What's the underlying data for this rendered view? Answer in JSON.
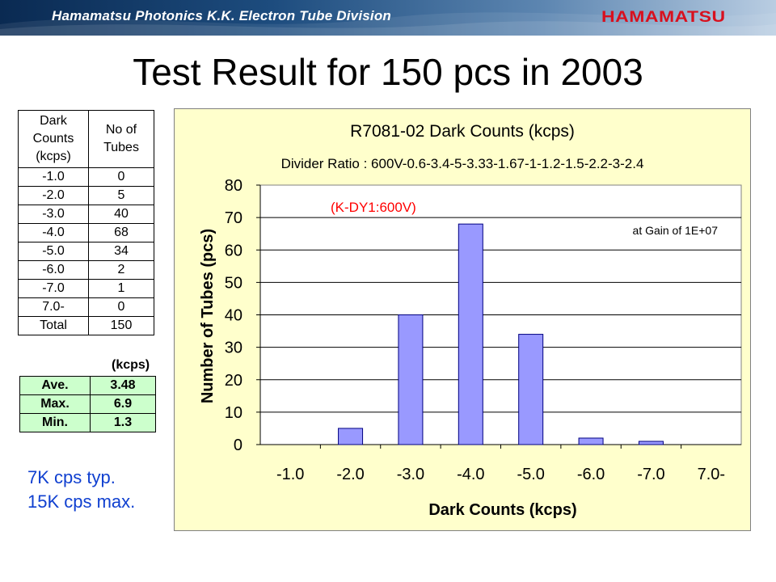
{
  "header": {
    "title": "Hamamatsu Photonics K.K.  Electron Tube Division",
    "logo": "HAMAMATSU"
  },
  "page_title": "Test Result for 150 pcs in 2003",
  "count_table": {
    "headers": [
      "Dark Counts (kcps)",
      "No of Tubes"
    ],
    "rows": [
      [
        "-1.0",
        "0"
      ],
      [
        "-2.0",
        "5"
      ],
      [
        "-3.0",
        "40"
      ],
      [
        "-4.0",
        "68"
      ],
      [
        "-5.0",
        "34"
      ],
      [
        "-6.0",
        "2"
      ],
      [
        "-7.0",
        "1"
      ],
      [
        "7.0-",
        "0"
      ],
      [
        "Total",
        "150"
      ]
    ]
  },
  "stats": {
    "unit": "(kcps)",
    "rows": [
      [
        "Ave.",
        "3.48"
      ],
      [
        "Max.",
        "6.9"
      ],
      [
        "Min.",
        "1.3"
      ]
    ]
  },
  "notes": [
    "7K cps typ.",
    "15K cps max."
  ],
  "chart_data": {
    "type": "bar",
    "title": "R7081-02 Dark Counts (kcps)",
    "subtitle": "Divider Ratio : 600V-0.6-3.4-5-3.33-1.67-1-1.2-1.5-2.2-3-2.4",
    "annotations": [
      "(K-DY1:600V)",
      "at Gain of 1E+07"
    ],
    "xlabel": "Dark Counts (kcps)",
    "ylabel": "Number of Tubes (pcs)",
    "categories": [
      "-1.0",
      "-2.0",
      "-3.0",
      "-4.0",
      "-5.0",
      "-6.0",
      "-7.0",
      "7.0-"
    ],
    "values": [
      0,
      5,
      40,
      68,
      34,
      2,
      1,
      0
    ],
    "ylim": [
      0,
      80
    ],
    "yticks": [
      "0",
      "10",
      "20",
      "30",
      "40",
      "50",
      "60",
      "70",
      "80"
    ],
    "grid": true,
    "colors": {
      "bar_fill": "#9999ff",
      "bar_stroke": "#000080",
      "plot_bg": "#ffffff",
      "chart_bg": "#ffffcc",
      "annotation": "#ff0000"
    }
  }
}
